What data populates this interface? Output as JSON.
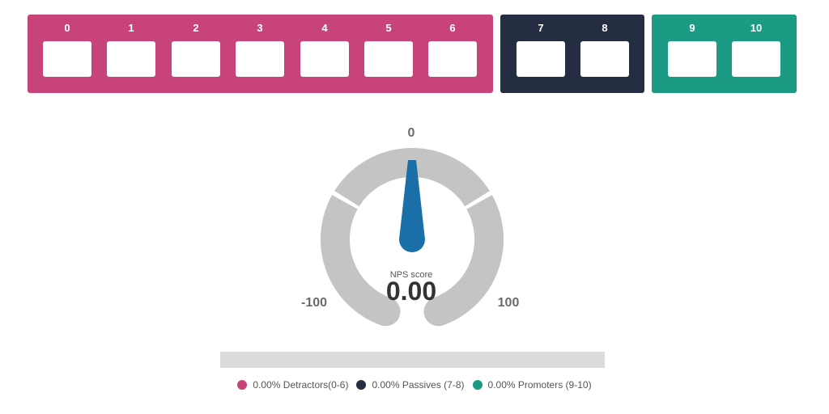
{
  "scale_groups": [
    {
      "name": "detractors",
      "color": "#c8437a",
      "cells": [
        "0",
        "1",
        "2",
        "3",
        "4",
        "5",
        "6"
      ]
    },
    {
      "name": "passives",
      "color": "#252d42",
      "cells": [
        "7",
        "8"
      ]
    },
    {
      "name": "promoters",
      "color": "#1b9a84",
      "cells": [
        "9",
        "10"
      ]
    }
  ],
  "gauge": {
    "min_label": "-100",
    "max_label": "100",
    "top_label": "0",
    "caption": "NPS score",
    "value": "0.00",
    "needle_value": 0,
    "track_color": "#c4c4c4",
    "needle_color": "#1a6fa8"
  },
  "breakdown_bar": {
    "color": "#dcdcdc"
  },
  "legend": [
    {
      "text": "0.00% Detractors(0-6)",
      "color": "#c8437a"
    },
    {
      "text": "0.00% Passives (7-8)",
      "color": "#252d42"
    },
    {
      "text": "0.00% Promoters (9-10)",
      "color": "#1b9a84"
    }
  ]
}
